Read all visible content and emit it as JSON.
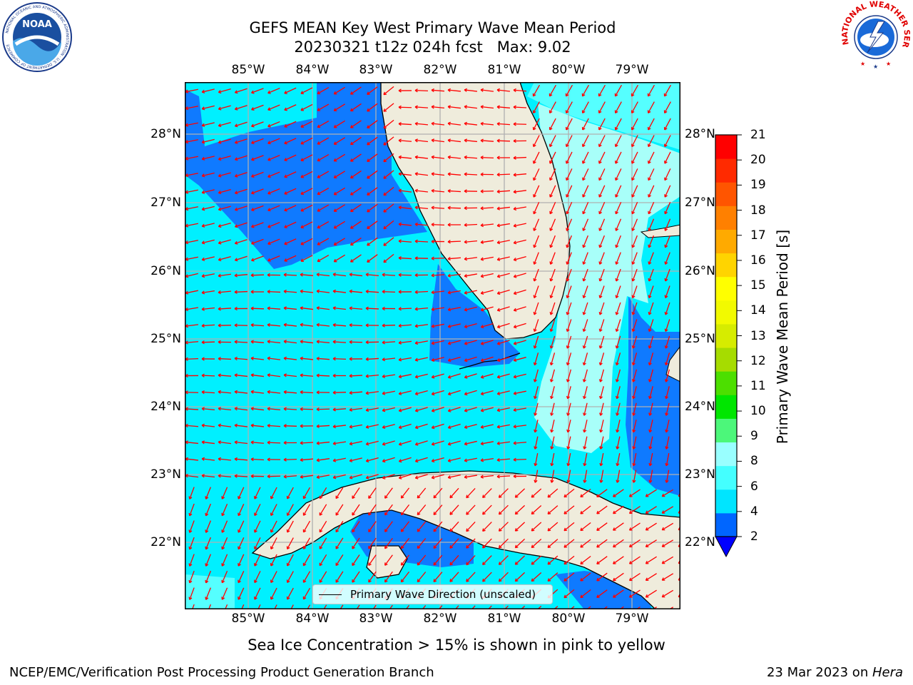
{
  "header": {
    "title_line1": "GEFS MEAN Key West Primary Wave Mean Period",
    "title_line2": "20230321 t12z 024h fcst   Max: 9.02"
  },
  "logos": {
    "noara_text": "NOAA",
    "noaa_ring_text": "NATIONAL OCEANIC AND ATMOSPHERIC ADMINISTRATION · U.S. DEPARTMENT OF COMMERCE",
    "nws_ring_text": "NATIONAL WEATHER SERVICE"
  },
  "map": {
    "lon_ticks": [
      "85°W",
      "84°W",
      "83°W",
      "82°W",
      "81°W",
      "80°W",
      "79°W"
    ],
    "lat_ticks": [
      "28°N",
      "27°N",
      "26°N",
      "25°N",
      "24°N",
      "23°N",
      "22°N"
    ]
  },
  "colorbar": {
    "label": "Primary Wave Mean Period [s]",
    "ticks": [
      "2",
      "4",
      "6",
      "8",
      "9",
      "10",
      "11",
      "12",
      "13",
      "14",
      "15",
      "16",
      "17",
      "18",
      "19",
      "20",
      "21"
    ],
    "colors": [
      "#0066ff",
      "#00e5ff",
      "#44ffff",
      "#99ffff",
      "#4cf77a",
      "#00e600",
      "#4cdf00",
      "#a6dc00",
      "#d6ec00",
      "#f2fa00",
      "#ffff00",
      "#ffd400",
      "#ffaa00",
      "#ff8000",
      "#ff5500",
      "#ff2a00",
      "#ff0000"
    ],
    "under_color": "#0000ff"
  },
  "legend": {
    "label": "Primary Wave Direction (unscaled)"
  },
  "footer": {
    "caption": "Sea Ice Concentration > 15% is shown in pink to yellow",
    "credit": "NCEP/EMC/Verification Post Processing Product Generation Branch",
    "date_prefix": "23 Mar 2023 on ",
    "date_machine": "Hera"
  },
  "colors": {
    "land": "#efecdc",
    "sea_2_4": "#0f7aff",
    "sea_4_6": "#00f0ff",
    "sea_6_8": "#55ffff",
    "sea_8_9": "#a8fff9",
    "arrow": "#ff0000",
    "grid": "#b0b0b0"
  }
}
